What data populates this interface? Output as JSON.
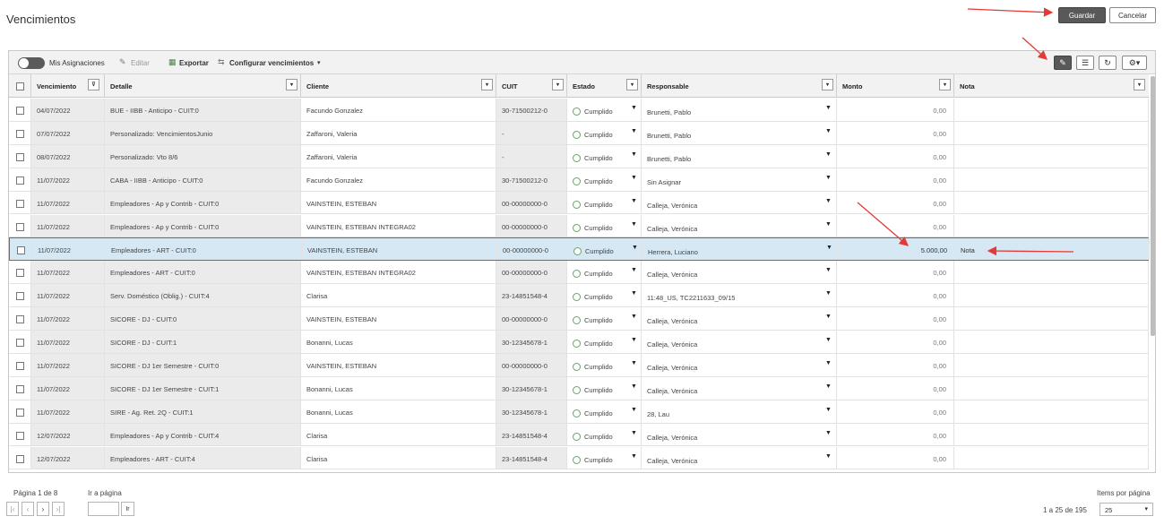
{
  "page": {
    "title": "Vencimientos"
  },
  "actions": {
    "save_label": "Guardar",
    "cancel_label": "Cancelar"
  },
  "toolbar": {
    "mis_asignaciones": "Mis Asignaciones",
    "editar": "Editar",
    "exportar": "Exportar",
    "configurar": "Configurar vencimientos"
  },
  "columns": [
    "Vencimiento",
    "Detalle",
    "Cliente",
    "CUIT",
    "Estado",
    "Responsable",
    "Monto",
    "Nota"
  ],
  "rows": [
    {
      "vencimiento": "04/07/2022",
      "detalle": "BUE - IIBB - Anticipo - CUIT:0",
      "cliente": "Facundo Gonzalez",
      "cuit": "30-71500212-0",
      "estado": "Cumplido",
      "responsable": "Brunetti, Pablo",
      "monto": "0,00",
      "nota": ""
    },
    {
      "vencimiento": "07/07/2022",
      "detalle": "Personalizado: VencimientosJunio",
      "cliente": "Zaffaroni, Valeria",
      "cuit": "-",
      "estado": "Cumplido",
      "responsable": "Brunetti, Pablo",
      "monto": "0,00",
      "nota": ""
    },
    {
      "vencimiento": "08/07/2022",
      "detalle": "Personalizado: Vto 8/6",
      "cliente": "Zaffaroni, Valeria",
      "cuit": "-",
      "estado": "Cumplido",
      "responsable": "Brunetti, Pablo",
      "monto": "0,00",
      "nota": ""
    },
    {
      "vencimiento": "11/07/2022",
      "detalle": "CABA - IIBB - Anticipo - CUIT:0",
      "cliente": "Facundo Gonzalez",
      "cuit": "30-71500212-0",
      "estado": "Cumplido",
      "responsable": "Sin Asignar",
      "monto": "0,00",
      "nota": ""
    },
    {
      "vencimiento": "11/07/2022",
      "detalle": "Empleadores - Ap y Contrib - CUIT:0",
      "cliente": "VAINSTEIN, ESTEBAN",
      "cuit": "00-00000000-0",
      "estado": "Cumplido",
      "responsable": "Calleja, Verónica",
      "monto": "0,00",
      "nota": ""
    },
    {
      "vencimiento": "11/07/2022",
      "detalle": "Empleadores - Ap y Contrib - CUIT:0",
      "cliente": "VAINSTEIN, ESTEBAN INTEGRA02",
      "cuit": "00-00000000-0",
      "estado": "Cumplido",
      "responsable": "Calleja, Verónica",
      "monto": "0,00",
      "nota": ""
    },
    {
      "vencimiento": "11/07/2022",
      "detalle": "Empleadores - ART - CUIT:0",
      "cliente": "VAINSTEIN, ESTEBAN",
      "cuit": "00-00000000-0",
      "estado": "Cumplido",
      "responsable": "Herrera, Luciano",
      "monto": "5.000,00",
      "nota": "Nota"
    },
    {
      "vencimiento": "11/07/2022",
      "detalle": "Empleadores - ART - CUIT:0",
      "cliente": "VAINSTEIN, ESTEBAN INTEGRA02",
      "cuit": "00-00000000-0",
      "estado": "Cumplido",
      "responsable": "Calleja, Verónica",
      "monto": "0,00",
      "nota": ""
    },
    {
      "vencimiento": "11/07/2022",
      "detalle": "Serv. Doméstico (Oblig.) - CUIT:4",
      "cliente": "Clarisa",
      "cuit": "23-14851548-4",
      "estado": "Cumplido",
      "responsable": "11:48_US, TC2211633_09/15",
      "monto": "0,00",
      "nota": ""
    },
    {
      "vencimiento": "11/07/2022",
      "detalle": "SICORE - DJ - CUIT:0",
      "cliente": "VAINSTEIN, ESTEBAN",
      "cuit": "00-00000000-0",
      "estado": "Cumplido",
      "responsable": "Calleja, Verónica",
      "monto": "0,00",
      "nota": ""
    },
    {
      "vencimiento": "11/07/2022",
      "detalle": "SICORE - DJ - CUIT:1",
      "cliente": "Bonanni, Lucas",
      "cuit": "30-12345678-1",
      "estado": "Cumplido",
      "responsable": "Calleja, Verónica",
      "monto": "0,00",
      "nota": ""
    },
    {
      "vencimiento": "11/07/2022",
      "detalle": "SICORE - DJ 1er Semestre - CUIT:0",
      "cliente": "VAINSTEIN, ESTEBAN",
      "cuit": "00-00000000-0",
      "estado": "Cumplido",
      "responsable": "Calleja, Verónica",
      "monto": "0,00",
      "nota": ""
    },
    {
      "vencimiento": "11/07/2022",
      "detalle": "SICORE - DJ 1er Semestre - CUIT:1",
      "cliente": "Bonanni, Lucas",
      "cuit": "30-12345678-1",
      "estado": "Cumplido",
      "responsable": "Calleja, Verónica",
      "monto": "0,00",
      "nota": ""
    },
    {
      "vencimiento": "11/07/2022",
      "detalle": "SIRE - Ag. Ret. 2Q - CUIT:1",
      "cliente": "Bonanni, Lucas",
      "cuit": "30-12345678-1",
      "estado": "Cumplido",
      "responsable": "28, Lau",
      "monto": "0,00",
      "nota": ""
    },
    {
      "vencimiento": "12/07/2022",
      "detalle": "Empleadores - Ap y Contrib - CUIT:4",
      "cliente": "Clarisa",
      "cuit": "23-14851548-4",
      "estado": "Cumplido",
      "responsable": "Calleja, Verónica",
      "monto": "0,00",
      "nota": ""
    },
    {
      "vencimiento": "12/07/2022",
      "detalle": "Empleadores - ART - CUIT:4",
      "cliente": "Clarisa",
      "cuit": "23-14851548-4",
      "estado": "Cumplido",
      "responsable": "Calleja, Verónica",
      "monto": "0,00",
      "nota": ""
    }
  ],
  "selected_row_index": 6,
  "pager": {
    "page_label": "Página 1 de 8",
    "goto_label": "Ir a página",
    "go_button": "Ir",
    "items_label": "Items por página",
    "range_label": "1 a 25 de 195",
    "per_page": "25"
  },
  "colors": {
    "primary_button": "#595959",
    "selected_row": "#d5e8f3",
    "annotation_arrow": "#e53935",
    "status_ring": "#6aa36a"
  }
}
